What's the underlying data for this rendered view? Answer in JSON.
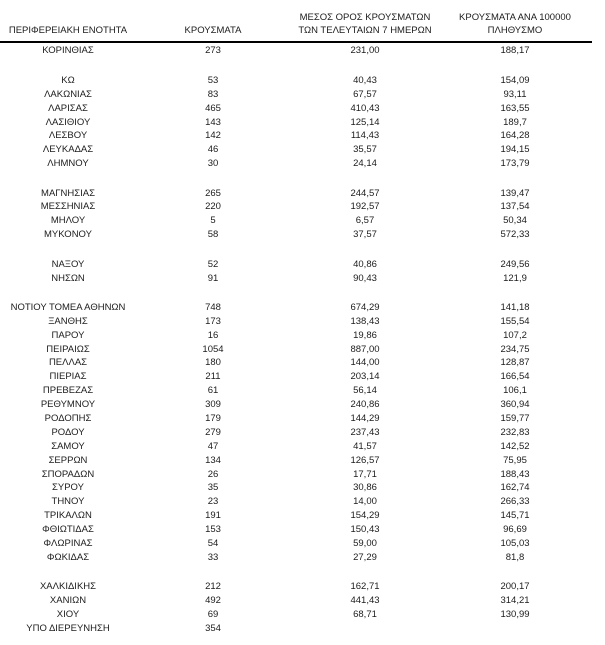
{
  "document": {
    "language": "el",
    "text_color": "#1c1c1c",
    "rule_color": "#000000",
    "background_color": "#ffffff"
  },
  "table": {
    "columns": [
      {
        "id": "region",
        "label": "ΠΕΡΙΦΕΡΕΙΑΚΗ ΕΝΟΤΗΤΑ"
      },
      {
        "id": "cases",
        "label": "ΚΡΟΥΣΜΑΤΑ"
      },
      {
        "id": "avg7",
        "label": "ΜΕΣΟΣ ΟΡΟΣ ΚΡΟΥΣΜΑΤΩΝ\nΤΩΝ ΤΕΛΕΥΤΑΙΩΝ 7 ΗΜΕΡΩΝ"
      },
      {
        "id": "per100k",
        "label": "ΚΡΟΥΣΜΑΤΑ ΑΝΑ 100000\nΠΛΗΘΥΣΜΟ"
      }
    ],
    "groups": [
      {
        "rows": [
          [
            "ΚΟΡΙΝΘΙΑΣ",
            "273",
            "231,00",
            "188,17"
          ]
        ]
      },
      {
        "rows": [
          [
            "ΚΩ",
            "53",
            "40,43",
            "154,09"
          ],
          [
            "ΛΑΚΩΝΙΑΣ",
            "83",
            "67,57",
            "93,11"
          ],
          [
            "ΛΑΡΙΣΑΣ",
            "465",
            "410,43",
            "163,55"
          ],
          [
            "ΛΑΣΙΘΙΟΥ",
            "143",
            "125,14",
            "189,7"
          ],
          [
            "ΛΕΣΒΟΥ",
            "142",
            "114,43",
            "164,28"
          ],
          [
            "ΛΕΥΚΑΔΑΣ",
            "46",
            "35,57",
            "194,15"
          ],
          [
            "ΛΗΜΝΟΥ",
            "30",
            "24,14",
            "173,79"
          ]
        ]
      },
      {
        "rows": [
          [
            "ΜΑΓΝΗΣΙΑΣ",
            "265",
            "244,57",
            "139,47"
          ],
          [
            "ΜΕΣΣΗΝΙΑΣ",
            "220",
            "192,57",
            "137,54"
          ],
          [
            "ΜΗΛΟΥ",
            "5",
            "6,57",
            "50,34"
          ],
          [
            "ΜΥΚΟΝΟΥ",
            "58",
            "37,57",
            "572,33"
          ]
        ]
      },
      {
        "rows": [
          [
            "ΝΑΞΟΥ",
            "52",
            "40,86",
            "249,56"
          ],
          [
            "ΝΗΣΩΝ",
            "91",
            "90,43",
            "121,9"
          ]
        ]
      },
      {
        "rows": [
          [
            "ΝΟΤΙΟΥ ΤΟΜΕΑ ΑΘΗΝΩΝ",
            "748",
            "674,29",
            "141,18"
          ],
          [
            "ΞΑΝΘΗΣ",
            "173",
            "138,43",
            "155,54"
          ],
          [
            "ΠΑΡΟΥ",
            "16",
            "19,86",
            "107,2"
          ],
          [
            "ΠΕΙΡΑΙΩΣ",
            "1054",
            "887,00",
            "234,75"
          ],
          [
            "ΠΕΛΛΑΣ",
            "180",
            "144,00",
            "128,87"
          ],
          [
            "ΠΙΕΡΙΑΣ",
            "211",
            "203,14",
            "166,54"
          ],
          [
            "ΠΡΕΒΕΖΑΣ",
            "61",
            "56,14",
            "106,1"
          ],
          [
            "ΡΕΘΥΜΝΟΥ",
            "309",
            "240,86",
            "360,94"
          ],
          [
            "ΡΟΔΟΠΗΣ",
            "179",
            "144,29",
            "159,77"
          ],
          [
            "ΡΟΔΟΥ",
            "279",
            "237,43",
            "232,83"
          ],
          [
            "ΣΑΜΟΥ",
            "47",
            "41,57",
            "142,52"
          ],
          [
            "ΣΕΡΡΩΝ",
            "134",
            "126,57",
            "75,95"
          ],
          [
            "ΣΠΟΡΑΔΩΝ",
            "26",
            "17,71",
            "188,43"
          ],
          [
            "ΣΥΡΟΥ",
            "35",
            "30,86",
            "162,74"
          ],
          [
            "ΤΗΝΟΥ",
            "23",
            "14,00",
            "266,33"
          ],
          [
            "ΤΡΙΚΑΛΩΝ",
            "191",
            "154,29",
            "145,71"
          ],
          [
            "ΦΘΙΩΤΙΔΑΣ",
            "153",
            "150,43",
            "96,69"
          ],
          [
            "ΦΛΩΡΙΝΑΣ",
            "54",
            "59,00",
            "105,03"
          ],
          [
            "ΦΩΚΙΔΑΣ",
            "33",
            "27,29",
            "81,8"
          ]
        ]
      },
      {
        "rows": [
          [
            "ΧΑΛΚΙΔΙΚΗΣ",
            "212",
            "162,71",
            "200,17"
          ],
          [
            "ΧΑΝΙΩΝ",
            "492",
            "441,43",
            "314,21"
          ],
          [
            "ΧΙΟΥ",
            "69",
            "68,71",
            "130,99"
          ],
          [
            "ΥΠΟ ΔΙΕΡΕΥΝΗΣΗ",
            "354",
            "",
            ""
          ]
        ]
      }
    ]
  }
}
